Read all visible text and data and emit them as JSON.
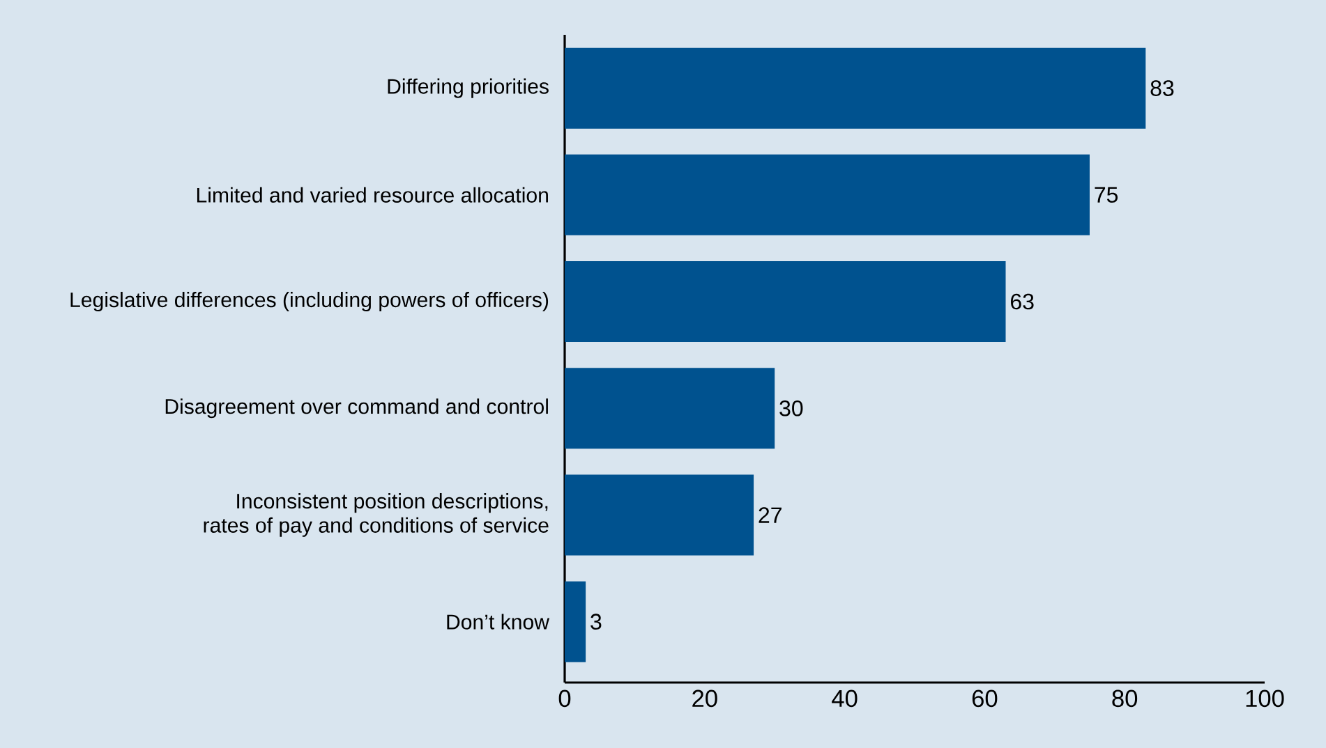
{
  "chart_data": {
    "type": "bar",
    "orientation": "horizontal",
    "categories": [
      "Differing priorities",
      "Limited and varied resource allocation",
      "Legislative differences (including powers of officers)",
      "Disagreement over command and control",
      "Inconsistent position descriptions, rates of pay and conditions of service",
      "Don’t know"
    ],
    "values": [
      83,
      75,
      63,
      30,
      27,
      3
    ],
    "color": "#00528f",
    "xlim": [
      0,
      100
    ],
    "xticks": [
      0,
      20,
      40,
      60,
      80,
      100
    ],
    "data_labels": true
  }
}
